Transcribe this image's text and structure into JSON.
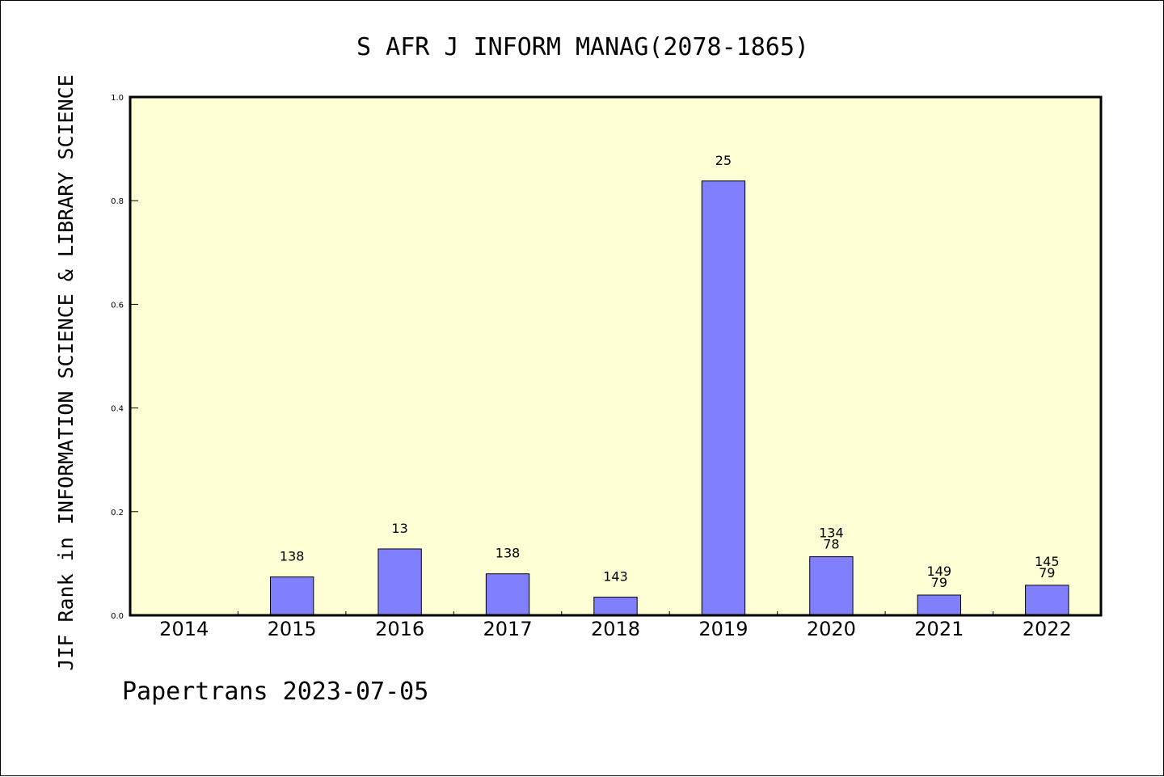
{
  "chart_data": {
    "type": "bar",
    "title": "S AFR J INFORM MANAG(2078-1865)",
    "ylabel": "JIF Rank in INFORMATION SCIENCE & LIBRARY SCIENCE",
    "xlabel": "",
    "categories": [
      "2014",
      "2015",
      "2016",
      "2017",
      "2018",
      "2019",
      "2020",
      "2021",
      "2022"
    ],
    "values": [
      null,
      0.074,
      0.128,
      0.08,
      0.035,
      0.838,
      0.113,
      0.039,
      0.058
    ],
    "bar_labels": [
      [],
      [
        "138"
      ],
      [
        "13"
      ],
      [
        "138"
      ],
      [
        "143"
      ],
      [
        "25"
      ],
      [
        "134",
        "78"
      ],
      [
        "149",
        "79"
      ],
      [
        "145",
        "79"
      ]
    ],
    "ylim": [
      0,
      1.0
    ],
    "yticks": [
      "0.0",
      "0.2",
      "0.4",
      "0.6",
      "0.8",
      "1.0"
    ],
    "ytick_values": [
      0,
      0.2,
      0.4,
      0.6,
      0.8,
      1.0
    ],
    "grid": false,
    "legend": "none",
    "colors": {
      "plot_background": "#ffffd6",
      "bar_fill": "#8080ff",
      "bar_stroke": "#000000",
      "axis": "#000000"
    }
  },
  "footer": {
    "text": "Papertrans 2023-07-05"
  }
}
